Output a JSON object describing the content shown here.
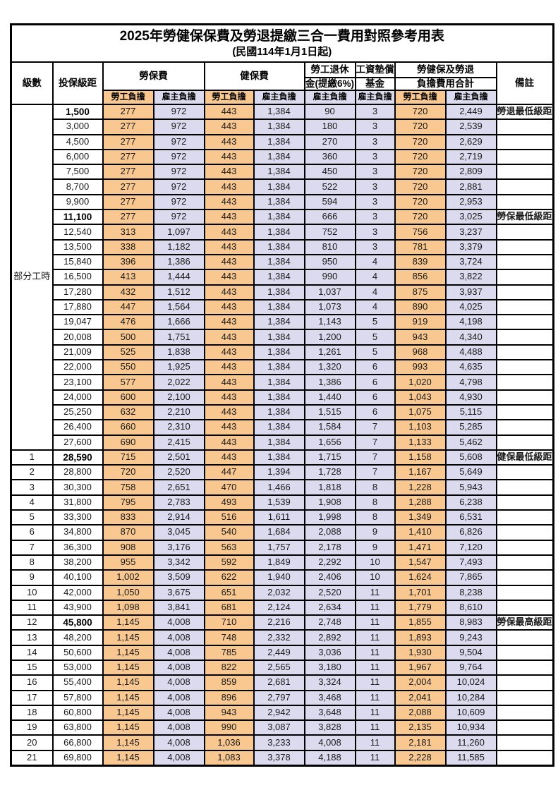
{
  "title": "2025年勞健保保費及勞退提繳三合一費用對照參考用表",
  "subtitle": "(民國114年1月1日起)",
  "header": {
    "level": "級數",
    "bracket": "投保級距",
    "labor_ins": "勞保費",
    "health_ins": "健保費",
    "pension_line1": "勞工退休",
    "pension_line2": "金(提繳6%)",
    "wage_fund_line1": "工資墊償",
    "wage_fund_line2": "基金",
    "total_line1": "勞健保及勞退",
    "total_line2": "負擔費用合計",
    "remark": "備註",
    "employee": "勞工負擔",
    "employer": "雇主負擔"
  },
  "group_label": "部分工時",
  "colors": {
    "employee_bg": "#F9C890",
    "employer_bg": "#DCDAEE",
    "highlight_text": "#E25555",
    "remark_text": "#FF4B4B"
  },
  "rows": [
    {
      "level": null,
      "bracket": "1,500",
      "values": [
        "277",
        "972",
        "443",
        "1,384",
        "90",
        "3",
        "720",
        "2,449"
      ],
      "remark": "勞退最低級距",
      "highlight": true
    },
    {
      "level": null,
      "bracket": "3,000",
      "values": [
        "277",
        "972",
        "443",
        "1,384",
        "180",
        "3",
        "720",
        "2,539"
      ],
      "remark": "",
      "highlight": false
    },
    {
      "level": null,
      "bracket": "4,500",
      "values": [
        "277",
        "972",
        "443",
        "1,384",
        "270",
        "3",
        "720",
        "2,629"
      ],
      "remark": "",
      "highlight": false
    },
    {
      "level": null,
      "bracket": "6,000",
      "values": [
        "277",
        "972",
        "443",
        "1,384",
        "360",
        "3",
        "720",
        "2,719"
      ],
      "remark": "",
      "highlight": false
    },
    {
      "level": null,
      "bracket": "7,500",
      "values": [
        "277",
        "972",
        "443",
        "1,384",
        "450",
        "3",
        "720",
        "2,809"
      ],
      "remark": "",
      "highlight": false
    },
    {
      "level": null,
      "bracket": "8,700",
      "values": [
        "277",
        "972",
        "443",
        "1,384",
        "522",
        "3",
        "720",
        "2,881"
      ],
      "remark": "",
      "highlight": false
    },
    {
      "level": null,
      "bracket": "9,900",
      "values": [
        "277",
        "972",
        "443",
        "1,384",
        "594",
        "3",
        "720",
        "2,953"
      ],
      "remark": "",
      "highlight": false
    },
    {
      "level": null,
      "bracket": "11,100",
      "values": [
        "277",
        "972",
        "443",
        "1,384",
        "666",
        "3",
        "720",
        "3,025"
      ],
      "remark": "勞保最低級距",
      "highlight": true
    },
    {
      "level": null,
      "bracket": "12,540",
      "values": [
        "313",
        "1,097",
        "443",
        "1,384",
        "752",
        "3",
        "756",
        "3,237"
      ],
      "remark": "",
      "highlight": false
    },
    {
      "level": null,
      "bracket": "13,500",
      "values": [
        "338",
        "1,182",
        "443",
        "1,384",
        "810",
        "3",
        "781",
        "3,379"
      ],
      "remark": "",
      "highlight": false
    },
    {
      "level": null,
      "bracket": "15,840",
      "values": [
        "396",
        "1,386",
        "443",
        "1,384",
        "950",
        "4",
        "839",
        "3,724"
      ],
      "remark": "",
      "highlight": false
    },
    {
      "level": null,
      "bracket": "16,500",
      "values": [
        "413",
        "1,444",
        "443",
        "1,384",
        "990",
        "4",
        "856",
        "3,822"
      ],
      "remark": "",
      "highlight": false
    },
    {
      "level": null,
      "bracket": "17,280",
      "values": [
        "432",
        "1,512",
        "443",
        "1,384",
        "1,037",
        "4",
        "875",
        "3,937"
      ],
      "remark": "",
      "highlight": false
    },
    {
      "level": null,
      "bracket": "17,880",
      "values": [
        "447",
        "1,564",
        "443",
        "1,384",
        "1,073",
        "4",
        "890",
        "4,025"
      ],
      "remark": "",
      "highlight": false
    },
    {
      "level": null,
      "bracket": "19,047",
      "values": [
        "476",
        "1,666",
        "443",
        "1,384",
        "1,143",
        "5",
        "919",
        "4,198"
      ],
      "remark": "",
      "highlight": false
    },
    {
      "level": null,
      "bracket": "20,008",
      "values": [
        "500",
        "1,751",
        "443",
        "1,384",
        "1,200",
        "5",
        "943",
        "4,340"
      ],
      "remark": "",
      "highlight": false
    },
    {
      "level": null,
      "bracket": "21,009",
      "values": [
        "525",
        "1,838",
        "443",
        "1,384",
        "1,261",
        "5",
        "968",
        "4,488"
      ],
      "remark": "",
      "highlight": false
    },
    {
      "level": null,
      "bracket": "22,000",
      "values": [
        "550",
        "1,925",
        "443",
        "1,384",
        "1,320",
        "6",
        "993",
        "4,635"
      ],
      "remark": "",
      "highlight": false
    },
    {
      "level": null,
      "bracket": "23,100",
      "values": [
        "577",
        "2,022",
        "443",
        "1,384",
        "1,386",
        "6",
        "1,020",
        "4,798"
      ],
      "remark": "",
      "highlight": false
    },
    {
      "level": null,
      "bracket": "24,000",
      "values": [
        "600",
        "2,100",
        "443",
        "1,384",
        "1,440",
        "6",
        "1,043",
        "4,930"
      ],
      "remark": "",
      "highlight": false
    },
    {
      "level": null,
      "bracket": "25,250",
      "values": [
        "632",
        "2,210",
        "443",
        "1,384",
        "1,515",
        "6",
        "1,075",
        "5,115"
      ],
      "remark": "",
      "highlight": false
    },
    {
      "level": null,
      "bracket": "26,400",
      "values": [
        "660",
        "2,310",
        "443",
        "1,384",
        "1,584",
        "7",
        "1,103",
        "5,285"
      ],
      "remark": "",
      "highlight": false
    },
    {
      "level": null,
      "bracket": "27,600",
      "values": [
        "690",
        "2,415",
        "443",
        "1,384",
        "1,656",
        "7",
        "1,133",
        "5,462"
      ],
      "remark": "",
      "highlight": false
    },
    {
      "level": "1",
      "bracket": "28,590",
      "values": [
        "715",
        "2,501",
        "443",
        "1,384",
        "1,715",
        "7",
        "1,158",
        "5,608"
      ],
      "remark": "健保最低級距",
      "highlight": true
    },
    {
      "level": "2",
      "bracket": "28,800",
      "values": [
        "720",
        "2,520",
        "447",
        "1,394",
        "1,728",
        "7",
        "1,167",
        "5,649"
      ],
      "remark": "",
      "highlight": false
    },
    {
      "level": "3",
      "bracket": "30,300",
      "values": [
        "758",
        "2,651",
        "470",
        "1,466",
        "1,818",
        "8",
        "1,228",
        "5,943"
      ],
      "remark": "",
      "highlight": false
    },
    {
      "level": "4",
      "bracket": "31,800",
      "values": [
        "795",
        "2,783",
        "493",
        "1,539",
        "1,908",
        "8",
        "1,288",
        "6,238"
      ],
      "remark": "",
      "highlight": false
    },
    {
      "level": "5",
      "bracket": "33,300",
      "values": [
        "833",
        "2,914",
        "516",
        "1,611",
        "1,998",
        "8",
        "1,349",
        "6,531"
      ],
      "remark": "",
      "highlight": false
    },
    {
      "level": "6",
      "bracket": "34,800",
      "values": [
        "870",
        "3,045",
        "540",
        "1,684",
        "2,088",
        "9",
        "1,410",
        "6,826"
      ],
      "remark": "",
      "highlight": false
    },
    {
      "level": "7",
      "bracket": "36,300",
      "values": [
        "908",
        "3,176",
        "563",
        "1,757",
        "2,178",
        "9",
        "1,471",
        "7,120"
      ],
      "remark": "",
      "highlight": false
    },
    {
      "level": "8",
      "bracket": "38,200",
      "values": [
        "955",
        "3,342",
        "592",
        "1,849",
        "2,292",
        "10",
        "1,547",
        "7,493"
      ],
      "remark": "",
      "highlight": false
    },
    {
      "level": "9",
      "bracket": "40,100",
      "values": [
        "1,002",
        "3,509",
        "622",
        "1,940",
        "2,406",
        "10",
        "1,624",
        "7,865"
      ],
      "remark": "",
      "highlight": false
    },
    {
      "level": "10",
      "bracket": "42,000",
      "values": [
        "1,050",
        "3,675",
        "651",
        "2,032",
        "2,520",
        "11",
        "1,701",
        "8,238"
      ],
      "remark": "",
      "highlight": false
    },
    {
      "level": "11",
      "bracket": "43,900",
      "values": [
        "1,098",
        "3,841",
        "681",
        "2,124",
        "2,634",
        "11",
        "1,779",
        "8,610"
      ],
      "remark": "",
      "highlight": false
    },
    {
      "level": "12",
      "bracket": "45,800",
      "values": [
        "1,145",
        "4,008",
        "710",
        "2,216",
        "2,748",
        "11",
        "1,855",
        "8,983"
      ],
      "remark": "勞保最高級距",
      "highlight": true
    },
    {
      "level": "13",
      "bracket": "48,200",
      "values": [
        "1,145",
        "4,008",
        "748",
        "2,332",
        "2,892",
        "11",
        "1,893",
        "9,243"
      ],
      "remark": "",
      "highlight": false
    },
    {
      "level": "14",
      "bracket": "50,600",
      "values": [
        "1,145",
        "4,008",
        "785",
        "2,449",
        "3,036",
        "11",
        "1,930",
        "9,504"
      ],
      "remark": "",
      "highlight": false
    },
    {
      "level": "15",
      "bracket": "53,000",
      "values": [
        "1,145",
        "4,008",
        "822",
        "2,565",
        "3,180",
        "11",
        "1,967",
        "9,764"
      ],
      "remark": "",
      "highlight": false
    },
    {
      "level": "16",
      "bracket": "55,400",
      "values": [
        "1,145",
        "4,008",
        "859",
        "2,681",
        "3,324",
        "11",
        "2,004",
        "10,024"
      ],
      "remark": "",
      "highlight": false
    },
    {
      "level": "17",
      "bracket": "57,800",
      "values": [
        "1,145",
        "4,008",
        "896",
        "2,797",
        "3,468",
        "11",
        "2,041",
        "10,284"
      ],
      "remark": "",
      "highlight": false
    },
    {
      "level": "18",
      "bracket": "60,800",
      "values": [
        "1,145",
        "4,008",
        "943",
        "2,942",
        "3,648",
        "11",
        "2,088",
        "10,609"
      ],
      "remark": "",
      "highlight": false
    },
    {
      "level": "19",
      "bracket": "63,800",
      "values": [
        "1,145",
        "4,008",
        "990",
        "3,087",
        "3,828",
        "11",
        "2,135",
        "10,934"
      ],
      "remark": "",
      "highlight": false
    },
    {
      "level": "20",
      "bracket": "66,800",
      "values": [
        "1,145",
        "4,008",
        "1,036",
        "3,233",
        "4,008",
        "11",
        "2,181",
        "11,260"
      ],
      "remark": "",
      "highlight": false
    },
    {
      "level": "21",
      "bracket": "69,800",
      "values": [
        "1,145",
        "4,008",
        "1,083",
        "3,378",
        "4,188",
        "11",
        "2,228",
        "11,585"
      ],
      "remark": "",
      "highlight": false
    }
  ]
}
